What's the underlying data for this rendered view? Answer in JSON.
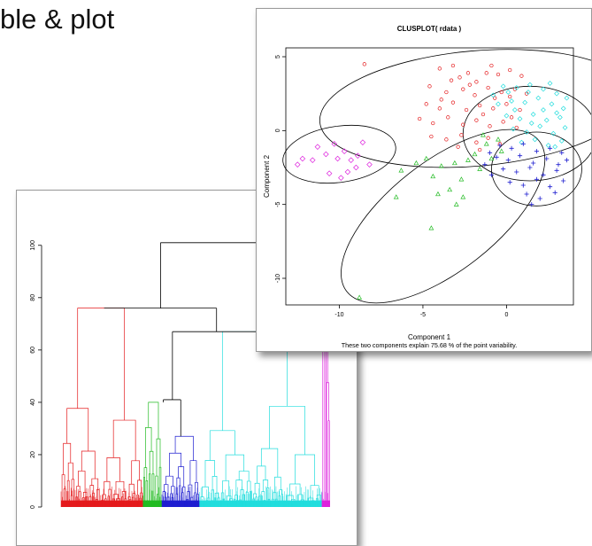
{
  "slide": {
    "title_partial": "ble & plot"
  },
  "colors": {
    "cluster1": "#e41a1c",
    "cluster2": "#22bb22",
    "cluster3": "#1e1ed0",
    "cluster4": "#22dddd",
    "cluster5": "#dd22dd",
    "tree": "#000000"
  },
  "dendrogram": {
    "chart_data": {
      "type": "dendrogram",
      "ylim": [
        0,
        105
      ],
      "yticks": [
        0,
        20,
        40,
        60,
        80,
        100
      ],
      "ytick_labels": [
        "0",
        "20",
        "40",
        "60",
        "80",
        "100"
      ],
      "clusters": [
        {
          "color": "#e41a1c",
          "span": [
            0.0,
            0.305
          ],
          "top_height": 76
        },
        {
          "color": "#22bb22",
          "span": [
            0.305,
            0.375
          ],
          "top_height": 40
        },
        {
          "color": "#1e1ed0",
          "span": [
            0.375,
            0.515
          ],
          "top_height": 27
        },
        {
          "color": "#22dddd",
          "span": [
            0.515,
            0.97
          ],
          "top_height": 67
        },
        {
          "color": "#dd22dd",
          "span": [
            0.97,
            1.0
          ],
          "top_height": 101
        }
      ],
      "merges": [
        {
          "left": 0.38,
          "right": 0.445,
          "height": 41
        },
        {
          "left": 0.414,
          "right": 0.743,
          "height": 67
        },
        {
          "left": 0.16,
          "right": 0.578,
          "height": 76
        },
        {
          "left": 0.37,
          "right": 0.985,
          "height": 101
        }
      ]
    }
  },
  "clusplot": {
    "chart_data": {
      "type": "scatter",
      "title": "CLUSPLOT( rdata )",
      "xlabel": "Component 1",
      "ylabel": "Component 2",
      "footnote": "These two components explain 75.68 % of the point variability.",
      "xlim": [
        -13.2,
        4.0
      ],
      "ylim": [
        -11.8,
        5.6
      ],
      "xticks": [
        -10,
        -5,
        0
      ],
      "xtick_labels": [
        "-10",
        "-5",
        "0"
      ],
      "yticks": [
        5,
        0,
        -5,
        -10
      ],
      "ytick_labels": [
        "5",
        "0",
        "-5",
        "-10"
      ],
      "ellipses": [
        {
          "cx": -1.8,
          "cy": 1.5,
          "rx": 9.4,
          "ry": 3.9,
          "angle": -5
        },
        {
          "cx": 1.4,
          "cy": -0.2,
          "rx": 4.0,
          "ry": 3.2,
          "angle": 0
        },
        {
          "cx": -3.8,
          "cy": -5.8,
          "rx": 7.3,
          "ry": 3.7,
          "angle": -38
        },
        {
          "cx": -10.0,
          "cy": -1.6,
          "rx": 3.4,
          "ry": 1.9,
          "angle": -8
        },
        {
          "cx": 1.8,
          "cy": -2.6,
          "rx": 2.7,
          "ry": 2.5,
          "angle": 0
        }
      ],
      "series": [
        {
          "marker": "circle",
          "color": "#e41a1c",
          "points": [
            [
              -8.5,
              4.5
            ],
            [
              -4.0,
              4.2
            ],
            [
              -3.2,
              4.4
            ],
            [
              -2.8,
              3.6
            ],
            [
              -2.3,
              3.9
            ],
            [
              -1.8,
              3.3
            ],
            [
              -1.2,
              3.9
            ],
            [
              -0.5,
              3.8
            ],
            [
              0.2,
              4.1
            ],
            [
              0.9,
              3.7
            ],
            [
              -4.6,
              3.0
            ],
            [
              -3.6,
              2.6
            ],
            [
              -2.6,
              2.8
            ],
            [
              -1.9,
              2.4
            ],
            [
              -1.1,
              2.9
            ],
            [
              -0.3,
              2.6
            ],
            [
              0.5,
              2.8
            ],
            [
              1.2,
              2.5
            ],
            [
              -4.8,
              1.8
            ],
            [
              -4.0,
              1.5
            ],
            [
              -3.2,
              1.9
            ],
            [
              -2.4,
              1.4
            ],
            [
              -1.6,
              1.7
            ],
            [
              -0.8,
              1.5
            ],
            [
              0.0,
              1.8
            ],
            [
              0.8,
              1.4
            ],
            [
              -5.2,
              0.8
            ],
            [
              -4.4,
              0.5
            ],
            [
              -3.5,
              0.9
            ],
            [
              -2.6,
              0.4
            ],
            [
              -1.8,
              0.7
            ],
            [
              -1.0,
              0.3
            ],
            [
              -0.2,
              0.6
            ],
            [
              0.6,
              0.2
            ],
            [
              -4.5,
              -0.4
            ],
            [
              -3.6,
              -0.6
            ],
            [
              -2.7,
              -0.3
            ],
            [
              -1.8,
              -0.8
            ],
            [
              -1.1,
              -0.5
            ],
            [
              -0.4,
              -0.9
            ],
            [
              -2.2,
              3.1
            ],
            [
              -0.7,
              2.2
            ],
            [
              -3.9,
              2.1
            ],
            [
              -1.4,
              1.1
            ],
            [
              0.3,
              0.9
            ],
            [
              -2.9,
              -1.1
            ],
            [
              -1.6,
              -1.3
            ],
            [
              0.2,
              2.3
            ],
            [
              -3.3,
              3.4
            ],
            [
              -0.9,
              4.4
            ]
          ]
        },
        {
          "marker": "diamond",
          "color": "#22dddd",
          "points": [
            [
              -0.2,
              3.0
            ],
            [
              0.6,
              2.9
            ],
            [
              1.4,
              3.1
            ],
            [
              2.2,
              2.8
            ],
            [
              3.0,
              2.5
            ],
            [
              -0.5,
              1.8
            ],
            [
              0.3,
              2.0
            ],
            [
              1.1,
              1.9
            ],
            [
              1.9,
              2.2
            ],
            [
              2.7,
              1.8
            ],
            [
              3.4,
              1.5
            ],
            [
              0.0,
              1.0
            ],
            [
              0.8,
              0.8
            ],
            [
              1.6,
              1.1
            ],
            [
              2.4,
              0.7
            ],
            [
              3.2,
              0.9
            ],
            [
              0.4,
              0.1
            ],
            [
              1.2,
              -0.1
            ],
            [
              2.0,
              0.3
            ],
            [
              2.8,
              -0.2
            ],
            [
              3.5,
              0.2
            ],
            [
              0.9,
              -0.8
            ],
            [
              1.7,
              -0.6
            ],
            [
              2.5,
              -1.0
            ],
            [
              3.3,
              -0.7
            ],
            [
              1.3,
              2.6
            ],
            [
              2.6,
              3.2
            ],
            [
              3.6,
              2.2
            ],
            [
              0.1,
              2.6
            ],
            [
              2.2,
              1.4
            ],
            [
              1.5,
              0.5
            ],
            [
              3.0,
              1.2
            ],
            [
              -0.8,
              2.4
            ],
            [
              0.5,
              1.4
            ],
            [
              2.9,
              -1.1
            ]
          ]
        },
        {
          "marker": "plus",
          "color": "#1e1ed0",
          "points": [
            [
              -0.4,
              -1.0
            ],
            [
              0.3,
              -1.2
            ],
            [
              1.0,
              -0.9
            ],
            [
              1.8,
              -1.4
            ],
            [
              2.6,
              -1.2
            ],
            [
              3.3,
              -1.5
            ],
            [
              -0.6,
              -1.8
            ],
            [
              0.1,
              -2.0
            ],
            [
              0.8,
              -1.7
            ],
            [
              1.6,
              -2.2
            ],
            [
              2.4,
              -1.9
            ],
            [
              3.1,
              -2.3
            ],
            [
              -0.2,
              -2.6
            ],
            [
              0.6,
              -2.8
            ],
            [
              1.4,
              -2.5
            ],
            [
              2.2,
              -3.0
            ],
            [
              3.0,
              -2.7
            ],
            [
              0.2,
              -3.5
            ],
            [
              1.0,
              -3.7
            ],
            [
              1.8,
              -3.3
            ],
            [
              2.6,
              -3.8
            ],
            [
              3.4,
              -3.4
            ],
            [
              1.2,
              -4.3
            ],
            [
              2.0,
              -4.6
            ],
            [
              2.9,
              -4.2
            ],
            [
              1.5,
              -5.0
            ],
            [
              -1.0,
              -1.5
            ],
            [
              -1.3,
              -2.3
            ],
            [
              -0.9,
              -3.0
            ],
            [
              3.6,
              -2.0
            ]
          ]
        },
        {
          "marker": "triangle",
          "color": "#22bb22",
          "points": [
            [
              -6.3,
              -2.7
            ],
            [
              -4.8,
              -1.9
            ],
            [
              -4.4,
              -3.1
            ],
            [
              -3.9,
              -2.4
            ],
            [
              -3.4,
              -4.0
            ],
            [
              -3.1,
              -2.2
            ],
            [
              -2.7,
              -3.3
            ],
            [
              -2.3,
              -2.0
            ],
            [
              -1.9,
              -1.6
            ],
            [
              -1.6,
              -2.6
            ],
            [
              -1.2,
              -0.9
            ],
            [
              -0.9,
              -1.9
            ],
            [
              -0.5,
              -0.6
            ],
            [
              -0.3,
              -1.4
            ],
            [
              -4.1,
              -4.3
            ],
            [
              -4.5,
              -6.6
            ],
            [
              -6.6,
              -4.5
            ],
            [
              -8.8,
              -11.3
            ],
            [
              -3.0,
              -5.0
            ],
            [
              -2.6,
              -4.5
            ],
            [
              -5.4,
              -2.2
            ],
            [
              -1.4,
              -0.3
            ]
          ]
        },
        {
          "marker": "diamond-open",
          "color": "#dd22dd",
          "points": [
            [
              -10.3,
              -0.9
            ],
            [
              -9.7,
              -1.4
            ],
            [
              -9.3,
              -2.0
            ],
            [
              -8.9,
              -1.7
            ],
            [
              -8.6,
              -0.8
            ],
            [
              -9.0,
              -2.5
            ],
            [
              -10.8,
              -1.6
            ],
            [
              -11.6,
              -2.0
            ],
            [
              -12.5,
              -2.3
            ],
            [
              -12.2,
              -1.9
            ],
            [
              -10.6,
              -2.9
            ],
            [
              -9.9,
              -3.2
            ],
            [
              -8.2,
              -2.3
            ],
            [
              -11.3,
              -1.1
            ],
            [
              -9.5,
              -2.8
            ],
            [
              -10.1,
              -1.9
            ]
          ]
        }
      ]
    }
  }
}
